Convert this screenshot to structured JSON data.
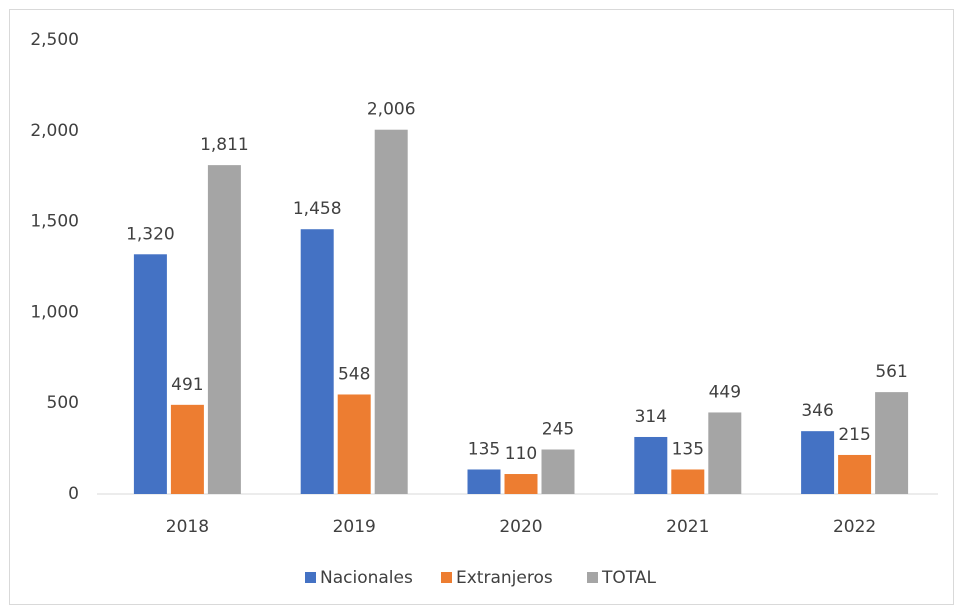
{
  "chart_data": {
    "type": "bar",
    "categories": [
      "2018",
      "2019",
      "2020",
      "2021",
      "2022"
    ],
    "series": [
      {
        "name": "Nacionales",
        "color": "#4472c4",
        "values": [
          1320,
          1458,
          135,
          314,
          346
        ],
        "value_labels": [
          "1,320",
          "1,458",
          "135",
          "314",
          "346"
        ]
      },
      {
        "name": "Extranjeros",
        "color": "#ed7d31",
        "values": [
          491,
          548,
          110,
          135,
          215
        ],
        "value_labels": [
          "491",
          "548",
          "110",
          "135",
          "215"
        ]
      },
      {
        "name": "TOTAL",
        "color": "#a5a5a5",
        "values": [
          1811,
          2006,
          245,
          449,
          561
        ],
        "value_labels": [
          "1,811",
          "2,006",
          "245",
          "449",
          "561"
        ]
      }
    ],
    "ylim": [
      0,
      2500
    ],
    "yticks": [
      0,
      500,
      {
        "value": 1000,
        "label": "1,000"
      },
      {
        "value": 1500,
        "label": "1,500"
      },
      {
        "value": 2000,
        "label": "2,000"
      },
      {
        "value": 2500,
        "label": "2,500"
      }
    ],
    "grid": false,
    "legend": "bottom"
  }
}
